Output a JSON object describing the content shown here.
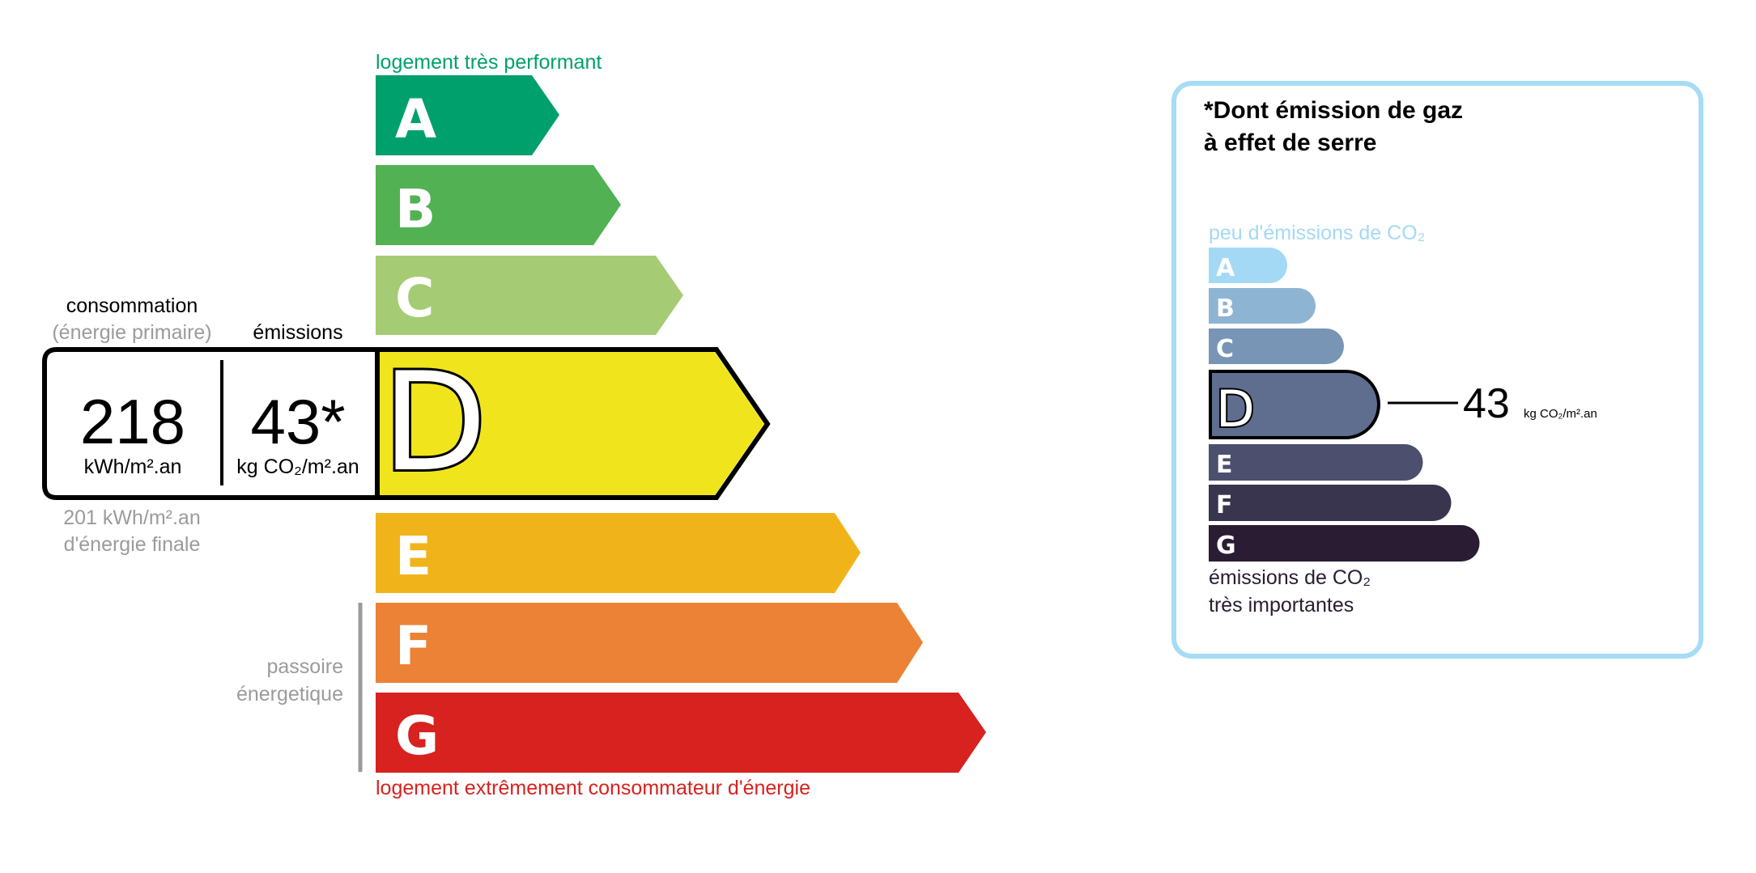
{
  "energy": {
    "top_label": "logement très performant",
    "bottom_label": "logement extrêmement consommateur d'énergie",
    "passoire_line1": "passoire",
    "passoire_line2": "énergetique",
    "classes": [
      {
        "letter": "A",
        "color": "#00a06d"
      },
      {
        "letter": "B",
        "color": "#52b153"
      },
      {
        "letter": "C",
        "color": "#a5cc74"
      },
      {
        "letter": "D",
        "color": "#f0e51c"
      },
      {
        "letter": "E",
        "color": "#f0b41a"
      },
      {
        "letter": "F",
        "color": "#eb8235"
      },
      {
        "letter": "G",
        "color": "#d7221f"
      }
    ],
    "current_class": "D",
    "consommation_label": "consommation",
    "consommation_sub": "(énergie primaire)",
    "emissions_label": "émissions",
    "consommation_value": "218",
    "consommation_unit": "kWh/m².an",
    "emissions_value": "43*",
    "emissions_unit": "kg CO₂/m².an",
    "final_energy_line1": "201 kWh/m².an",
    "final_energy_line2": "d'énergie finale"
  },
  "ges": {
    "title_line1": "*Dont émission de gaz",
    "title_line2": "à effet de serre",
    "top_label": "peu d'émissions de CO₂",
    "bottom_line1": "émissions de CO₂",
    "bottom_line2": "très importantes",
    "border_color": "#a6dcf5",
    "classes": [
      {
        "letter": "A",
        "color": "#a4d9f5"
      },
      {
        "letter": "B",
        "color": "#8db4d3"
      },
      {
        "letter": "C",
        "color": "#7895b6"
      },
      {
        "letter": "D",
        "color": "#5f6e8f"
      },
      {
        "letter": "E",
        "color": "#4c4f6e"
      },
      {
        "letter": "F",
        "color": "#39354f"
      },
      {
        "letter": "G",
        "color": "#291c33"
      }
    ],
    "current_class": "D",
    "value": "43",
    "unit": "kg CO₂/m².an"
  }
}
